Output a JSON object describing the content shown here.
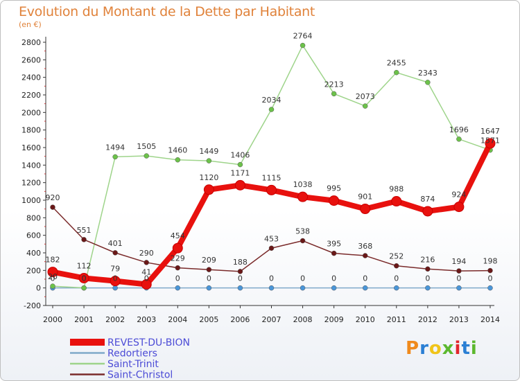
{
  "title": "Evolution du Montant de la Dette par Habitant",
  "subtitle": "(en €)",
  "brand": {
    "text": "Proxiti",
    "colors": [
      "#f08a1c",
      "#2a7fd4",
      "#f0c419",
      "#5cb82e",
      "#e2262d",
      "#2a7fd4",
      "#5cb82e"
    ]
  },
  "chart_data": {
    "type": "line",
    "x": [
      "2000",
      "2001",
      "2002",
      "2003",
      "2004",
      "2005",
      "2006",
      "2007",
      "2008",
      "2009",
      "2010",
      "2011",
      "2012",
      "2013",
      "2014"
    ],
    "ylim": [
      -200,
      2800
    ],
    "yticks": [
      -200,
      0,
      200,
      400,
      600,
      800,
      1000,
      1200,
      1400,
      1600,
      1800,
      2000,
      2200,
      2400,
      2600,
      2800
    ],
    "grid": false,
    "legend": "bottom-left",
    "series": [
      {
        "name": "REVEST-DU-BION",
        "color": "#e8110e",
        "labelColor": "#4b4bd6",
        "width": 8,
        "marker": 7,
        "values": [
          182,
          112,
          79,
          41,
          454,
          1120,
          1171,
          1115,
          1038,
          995,
          901,
          988,
          874,
          924,
          1647
        ],
        "labels": [
          "182",
          "112",
          "79",
          "41",
          "454",
          "1120",
          "1171",
          "1115",
          "1038",
          "995",
          "901",
          "988",
          "874",
          "924",
          "1647"
        ]
      },
      {
        "name": "Redortiers",
        "color": "#7fa9c9",
        "labelColor": "#4b4bd6",
        "width": 1.5,
        "marker": 3.5,
        "markerColor": "#4a96d9",
        "values": [
          0,
          0,
          0,
          0,
          0,
          0,
          0,
          0,
          0,
          0,
          0,
          0,
          0,
          0,
          0
        ],
        "labels": [
          "0",
          "0",
          "0",
          "0",
          "0",
          "0",
          "0",
          "0",
          "0",
          "0",
          "0",
          "0",
          "0",
          "0",
          "0"
        ]
      },
      {
        "name": "Saint-Trinit",
        "color": "#9ed48a",
        "labelColor": "#4b4bd6",
        "width": 1.5,
        "marker": 3.5,
        "markerColor": "#6cc24a",
        "values": [
          20,
          0,
          1494,
          1505,
          1460,
          1449,
          1406,
          2034,
          2764,
          2213,
          2073,
          2455,
          2343,
          1696,
          1571
        ],
        "labels": [
          "20",
          "0",
          "1494",
          "1505",
          "1460",
          "1449",
          "1406",
          "2034",
          "2764",
          "2213",
          "2073",
          "2455",
          "2343",
          "1696",
          "1571"
        ]
      },
      {
        "name": "Saint-Christol",
        "color": "#7a2a2a",
        "labelColor": "#4b4bd6",
        "width": 1.5,
        "marker": 3.5,
        "markerColor": "#6a1818",
        "values": [
          920,
          551,
          401,
          290,
          229,
          209,
          188,
          453,
          538,
          395,
          368,
          252,
          216,
          194,
          198
        ],
        "labels": [
          "920",
          "551",
          "401",
          "290",
          "229",
          "209",
          "188",
          "453",
          "538",
          "395",
          "368",
          "252",
          "216",
          "194",
          "198"
        ]
      }
    ]
  }
}
